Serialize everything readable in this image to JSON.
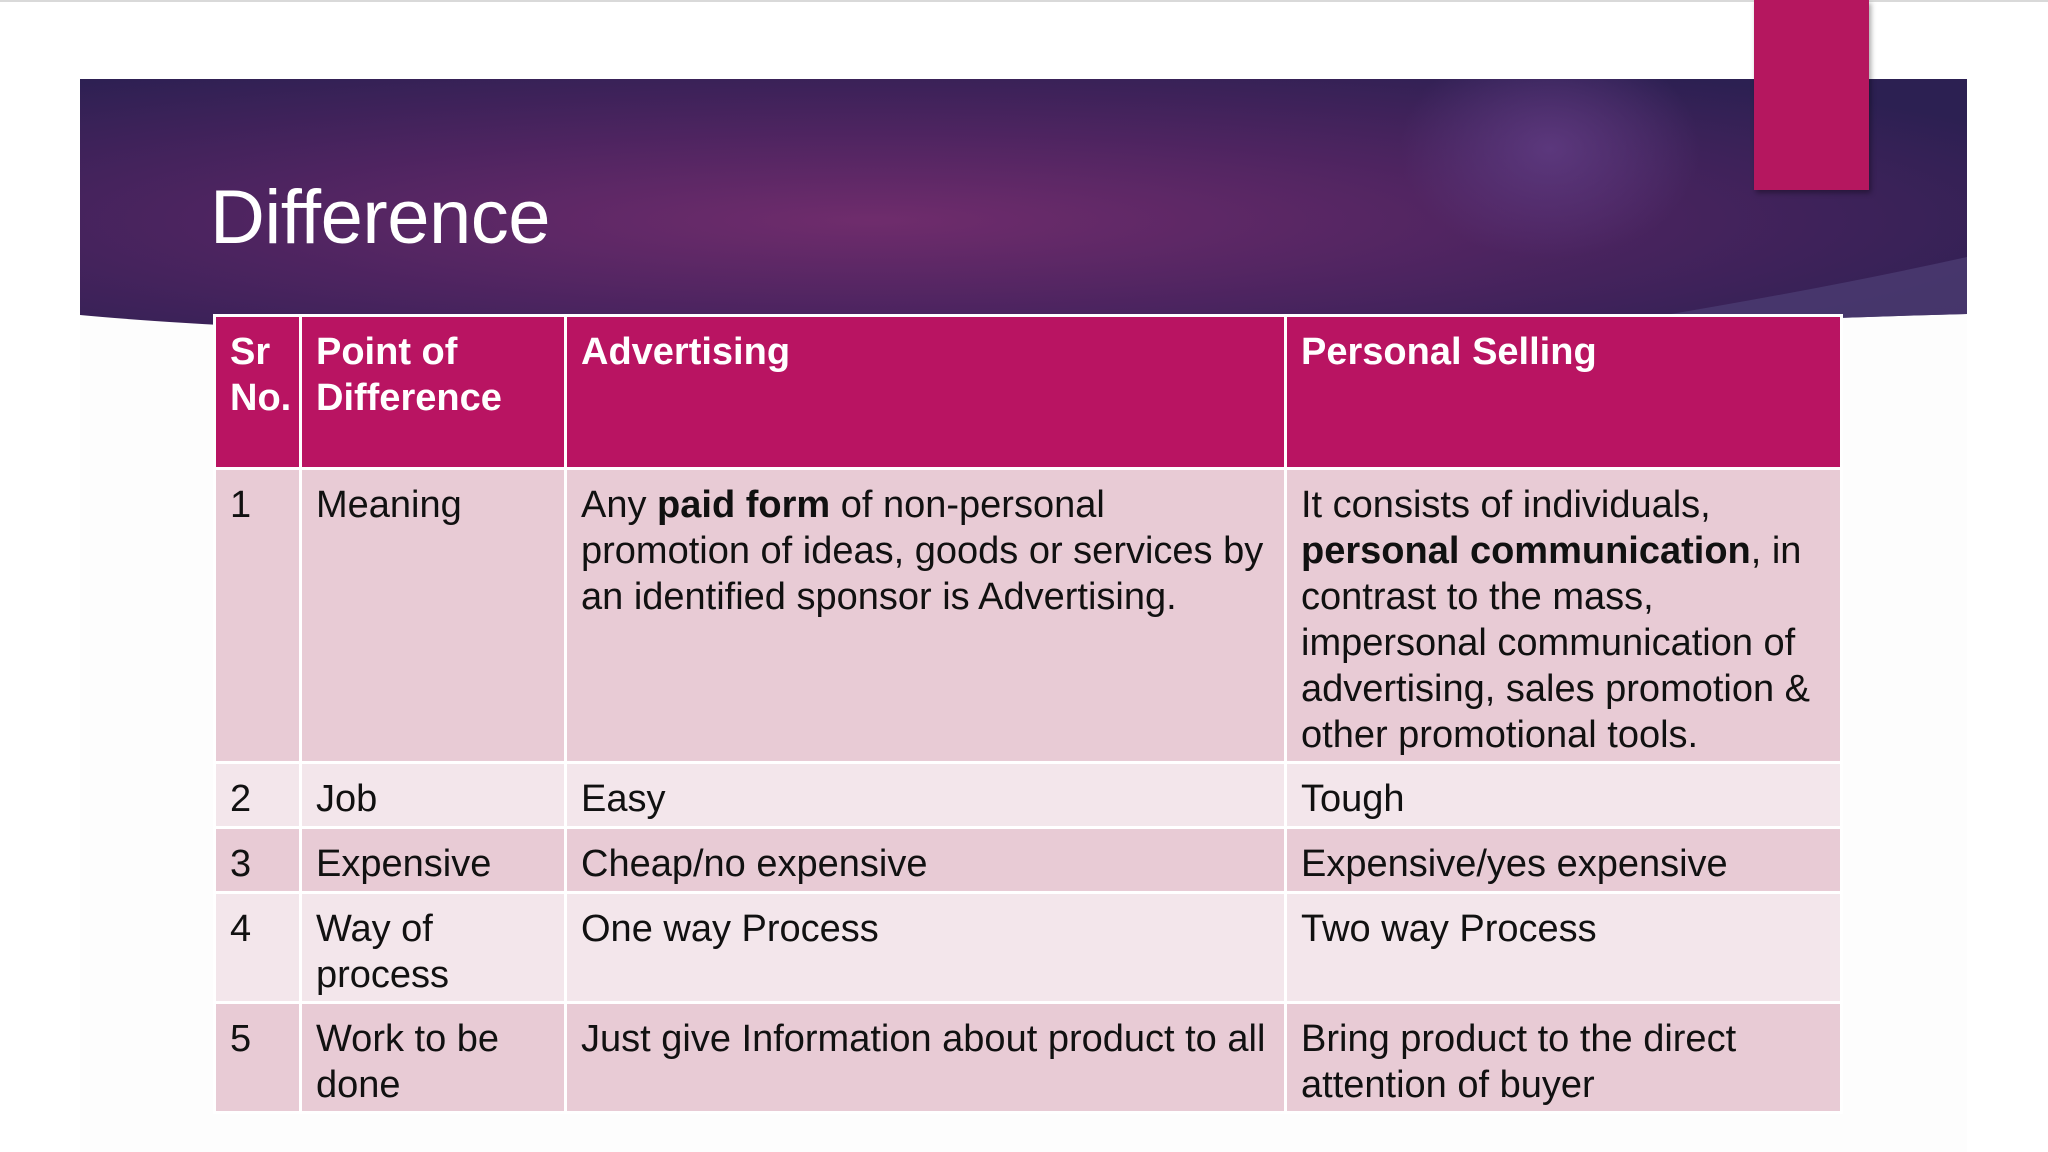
{
  "slide": {
    "title": "Difference",
    "colors": {
      "banner_dark": "#2e1f55",
      "banner_mid": "#6a2a6a",
      "accent": "#b5175f",
      "header_fill": "#b91462",
      "row_odd": "#e8cbd5",
      "row_even": "#f3e6eb"
    }
  },
  "table": {
    "headers": {
      "sr_no": "Sr No.",
      "point": "Point of Difference",
      "advertising": "Advertising",
      "personal_selling": "Personal Selling"
    },
    "rows": [
      {
        "sr": "1",
        "point": "Meaning",
        "advertising": {
          "pre": "Any ",
          "bold": "paid form",
          "post": " of non-personal promotion of ideas, goods or services by an identified sponsor is Advertising."
        },
        "personal_selling": {
          "pre": "It consists of individuals, ",
          "bold": "personal communication",
          "post": ", in contrast to the mass, impersonal communication of advertising, sales promotion & other promotional tools."
        }
      },
      {
        "sr": "2",
        "point": "Job",
        "advertising": "Easy",
        "personal_selling": "Tough"
      },
      {
        "sr": "3",
        "point": "Expensive",
        "advertising": "Cheap/no expensive",
        "personal_selling": "Expensive/yes expensive"
      },
      {
        "sr": "4",
        "point": "Way of process",
        "advertising": "One way Process",
        "personal_selling": "Two way Process"
      },
      {
        "sr": "5",
        "point": "Work to be done",
        "advertising": "Just give Information about product to all",
        "personal_selling": "Bring product to the direct attention of buyer"
      }
    ]
  }
}
